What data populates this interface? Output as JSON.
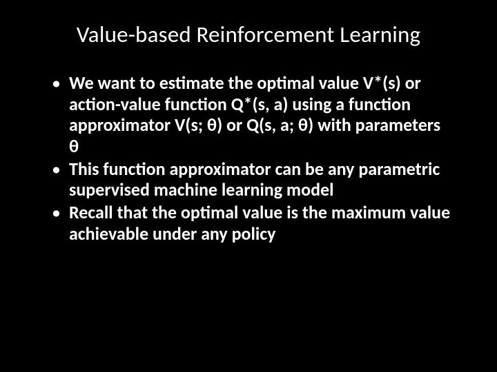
{
  "slide": {
    "title": "Value-based Reinforcement Learning",
    "bullets": [
      {
        "text": "We want to estimate the optimal value V*(s) or action-value function Q*(s, a) using a function approximator V(s; θ) or Q(s, a; θ) with parameters θ"
      },
      {
        "text": "This function approximator can be any parametric supervised machine learning model"
      },
      {
        "text": "Recall that the optimal value is the maximum value achievable under any policy"
      }
    ]
  },
  "styling": {
    "background_color": "#000000",
    "text_color": "#ffffff",
    "title_fontsize": 33,
    "title_fontweight": 400,
    "body_fontsize": 26,
    "body_fontweight": 600,
    "font_family": "Calibri, Segoe UI, Arial, sans-serif",
    "bullet_marker": "•",
    "line_height": 1.18
  }
}
